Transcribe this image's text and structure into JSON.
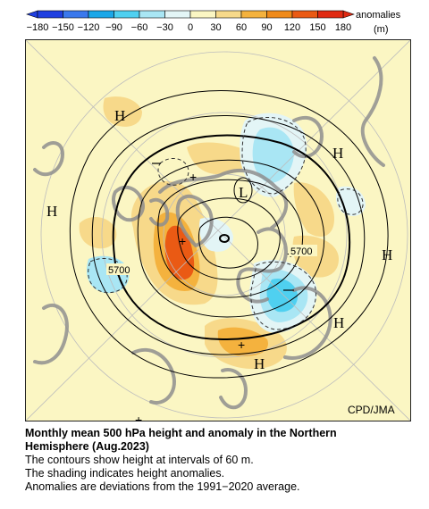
{
  "colorbar": {
    "ticks": [
      "−180",
      "−150",
      "−120",
      "−90",
      "−60",
      "−30",
      "0",
      "30",
      "60",
      "90",
      "120",
      "150",
      "180"
    ],
    "colors": [
      "#1f3fe0",
      "#3a78ec",
      "#1ba7e8",
      "#4fd0f0",
      "#a9e6f4",
      "#e3f5f6",
      "#fbf6c3",
      "#f7d98a",
      "#f4b23e",
      "#ef8a1a",
      "#ea5a14",
      "#e02a12"
    ],
    "unit_line1": "anomalies",
    "unit_line2": "(m)"
  },
  "map": {
    "credit": "CPD/JMA",
    "high_marker": "H",
    "low_marker": "L",
    "contour_label_1": "5700",
    "contour_label_2": "5700",
    "center_plus": "+"
  },
  "caption": {
    "title_line1": "Monthly mean 500 hPa height and anomaly in the Northern",
    "title_line2": "Hemisphere (Aug.2023)",
    "line1": "The contours show height at intervals of 60 m.",
    "line2": "The shading indicates height anomalies.",
    "line3": "Anomalies are deviations from the 1991−2020 average."
  }
}
